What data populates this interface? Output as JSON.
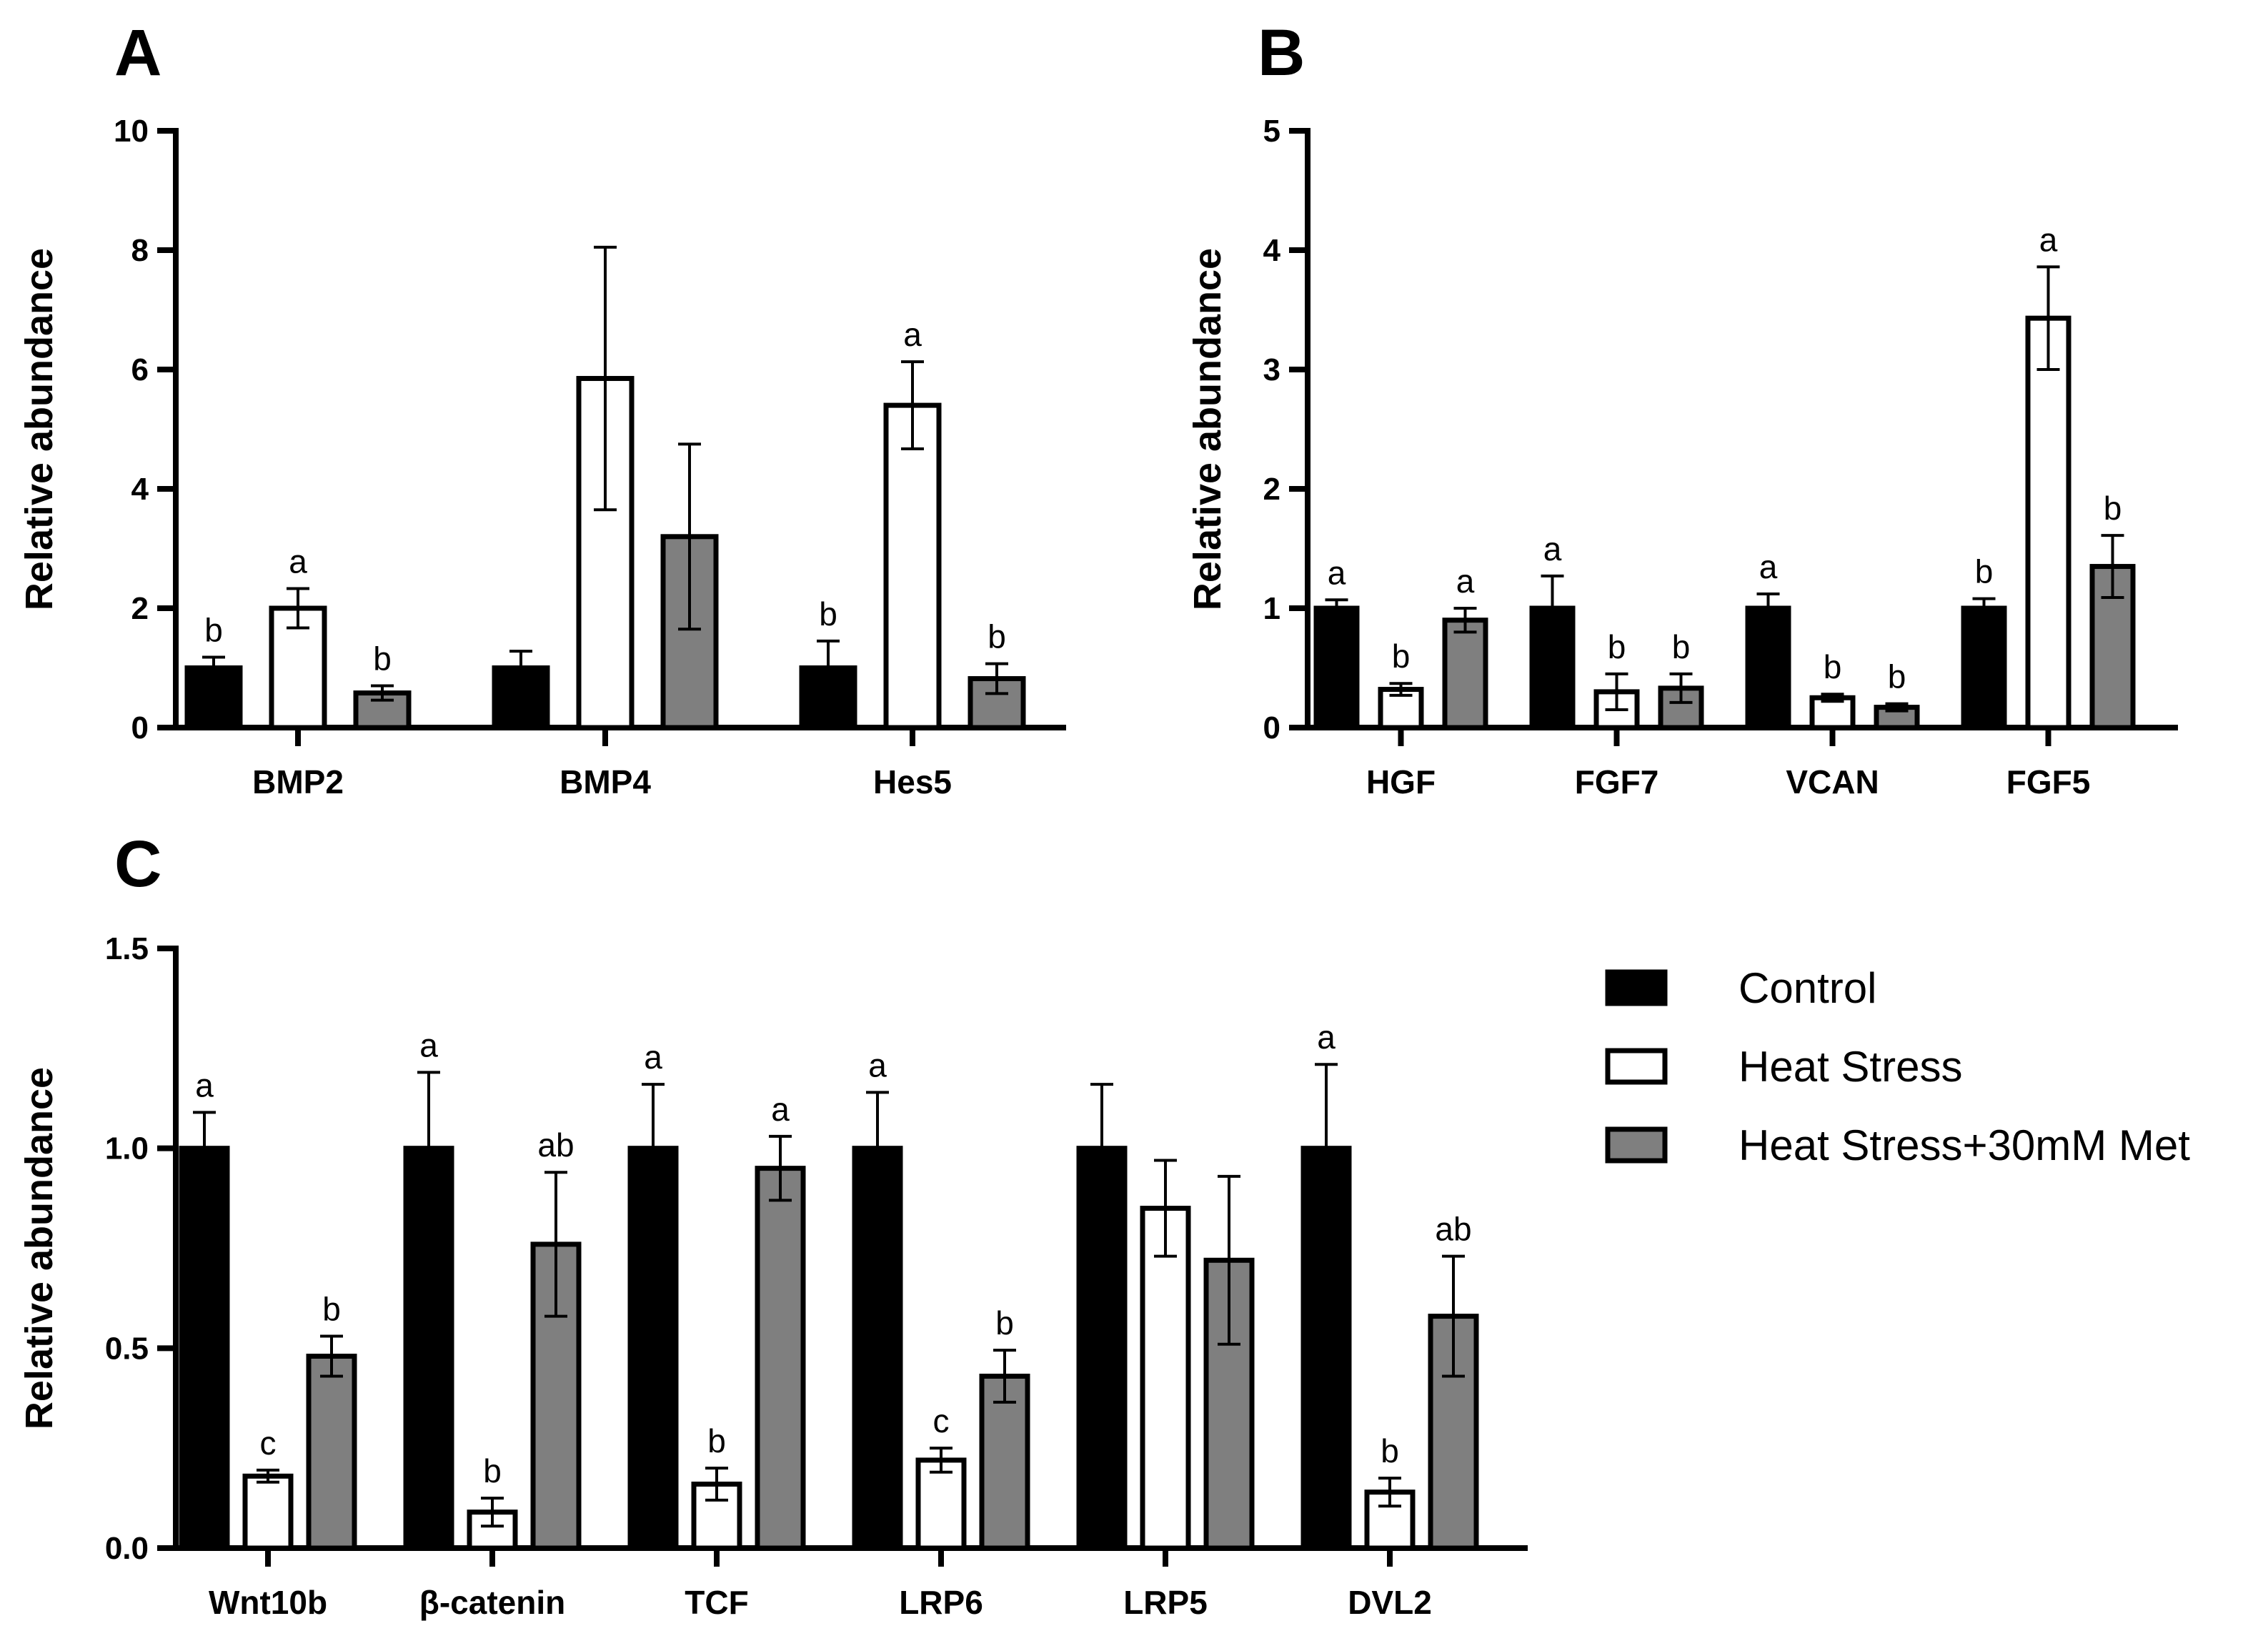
{
  "colors": {
    "Control": "#000000",
    "Heat Stress": "#ffffff",
    "Heat Stress+30mM Met": "#7f7f7f",
    "outline": "#000000"
  },
  "legend": {
    "entries": [
      "Control",
      "Heat Stress",
      "Heat Stress+30mM Met"
    ]
  },
  "chart_data": [
    {
      "panel": "A",
      "type": "bar",
      "title": "",
      "xlabel": "",
      "ylabel": "Relative abundance",
      "ylim": [
        0,
        10
      ],
      "yticks": [
        0,
        2,
        4,
        6,
        8,
        10
      ],
      "yticklabels": [
        "0",
        "2",
        "4",
        "6",
        "8",
        "10"
      ],
      "categories": [
        "BMP2",
        "BMP4",
        "Hes5"
      ],
      "series": [
        {
          "name": "Control",
          "values": [
            1.0,
            1.0,
            1.0
          ],
          "errors": [
            0.18,
            0.28,
            0.45
          ],
          "labels": [
            "b",
            "",
            "b"
          ]
        },
        {
          "name": "Heat Stress",
          "values": [
            2.0,
            5.85,
            5.4
          ],
          "errors": [
            0.33,
            2.2,
            0.73
          ],
          "labels": [
            "a",
            "",
            "a"
          ]
        },
        {
          "name": "Heat Stress+30mM Met",
          "values": [
            0.58,
            3.2,
            0.82
          ],
          "errors": [
            0.12,
            1.55,
            0.25
          ],
          "labels": [
            "b",
            "",
            "b"
          ]
        }
      ]
    },
    {
      "panel": "B",
      "type": "bar",
      "title": "",
      "xlabel": "",
      "ylabel": "Relative abundance",
      "ylim": [
        0,
        5
      ],
      "yticks": [
        0,
        1,
        2,
        3,
        4,
        5
      ],
      "yticklabels": [
        "0",
        "1",
        "2",
        "3",
        "4",
        "5"
      ],
      "categories": [
        "HGF",
        "FGF7",
        "VCAN",
        "FGF5"
      ],
      "series": [
        {
          "name": "Control",
          "values": [
            1.0,
            1.0,
            1.0,
            1.0
          ],
          "errors": [
            0.07,
            0.27,
            0.12,
            0.08
          ],
          "labels": [
            "a",
            "a",
            "a",
            "b"
          ]
        },
        {
          "name": "Heat Stress",
          "values": [
            0.32,
            0.3,
            0.25,
            3.43
          ],
          "errors": [
            0.05,
            0.15,
            0.03,
            0.43
          ],
          "labels": [
            "b",
            "b",
            "b",
            "a"
          ]
        },
        {
          "name": "Heat Stress+30mM Met",
          "values": [
            0.9,
            0.33,
            0.17,
            1.35
          ],
          "errors": [
            0.1,
            0.12,
            0.03,
            0.26
          ],
          "labels": [
            "a",
            "b",
            "b",
            "b"
          ]
        }
      ]
    },
    {
      "panel": "C",
      "type": "bar",
      "title": "",
      "xlabel": "",
      "ylabel": "Relative abundance",
      "ylim": [
        0,
        1.5
      ],
      "yticks": [
        0,
        0.5,
        1.0,
        1.5
      ],
      "yticklabels": [
        "0.0",
        "0.5",
        "1.0",
        "1.5"
      ],
      "categories": [
        "Wnt10b",
        "β-catenin",
        "TCF",
        "LRP6",
        "LRP5",
        "DVL2"
      ],
      "series": [
        {
          "name": "Control",
          "values": [
            1.0,
            1.0,
            1.0,
            1.0,
            1.0,
            1.0
          ],
          "errors": [
            0.09,
            0.19,
            0.16,
            0.14,
            0.16,
            0.21
          ],
          "labels": [
            "a",
            "a",
            "a",
            "a",
            "",
            "a"
          ]
        },
        {
          "name": "Heat Stress",
          "values": [
            0.18,
            0.09,
            0.16,
            0.22,
            0.85,
            0.14
          ],
          "errors": [
            0.015,
            0.035,
            0.04,
            0.03,
            0.12,
            0.035
          ],
          "labels": [
            "c",
            "b",
            "b",
            "c",
            "",
            "b"
          ]
        },
        {
          "name": "Heat Stress+30mM Met",
          "values": [
            0.48,
            0.76,
            0.95,
            0.43,
            0.72,
            0.58
          ],
          "errors": [
            0.05,
            0.18,
            0.08,
            0.065,
            0.21,
            0.15
          ],
          "labels": [
            "b",
            "ab",
            "a",
            "b",
            "",
            "ab"
          ]
        }
      ]
    }
  ]
}
